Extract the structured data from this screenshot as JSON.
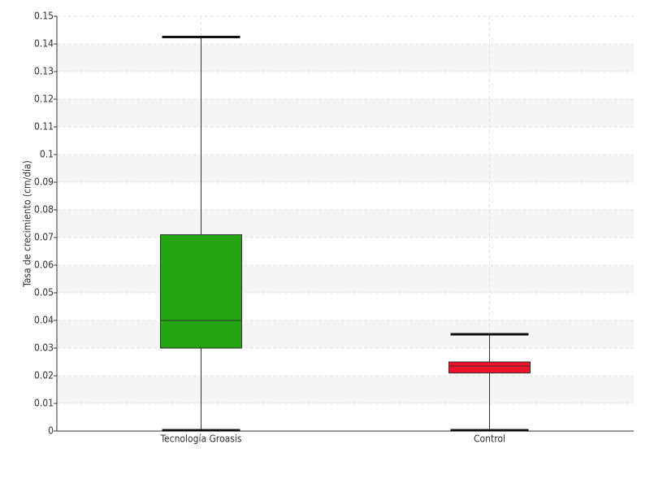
{
  "chart_data": {
    "type": "box",
    "y_label": "Tasa de crecimiento (cm/día)",
    "categories": [
      "Tecnología Groasis",
      "Control"
    ],
    "colors": [
      "#22a511",
      "#f5102a"
    ],
    "values": [
      {
        "min": 0,
        "q1": 0.03,
        "median": 0.04,
        "q3": 0.071,
        "max": 0.1425
      },
      {
        "min": 0,
        "q1": 0.021,
        "median": 0.0235,
        "q3": 0.025,
        "max": 0.035
      }
    ],
    "ylim": [
      0,
      0.15
    ],
    "yticks": [
      0,
      0.01,
      0.02,
      0.03,
      0.04,
      0.05,
      0.06,
      0.07,
      0.08,
      0.09,
      0.1,
      0.11,
      0.12,
      0.13,
      0.14,
      0.15
    ],
    "grid": true
  }
}
